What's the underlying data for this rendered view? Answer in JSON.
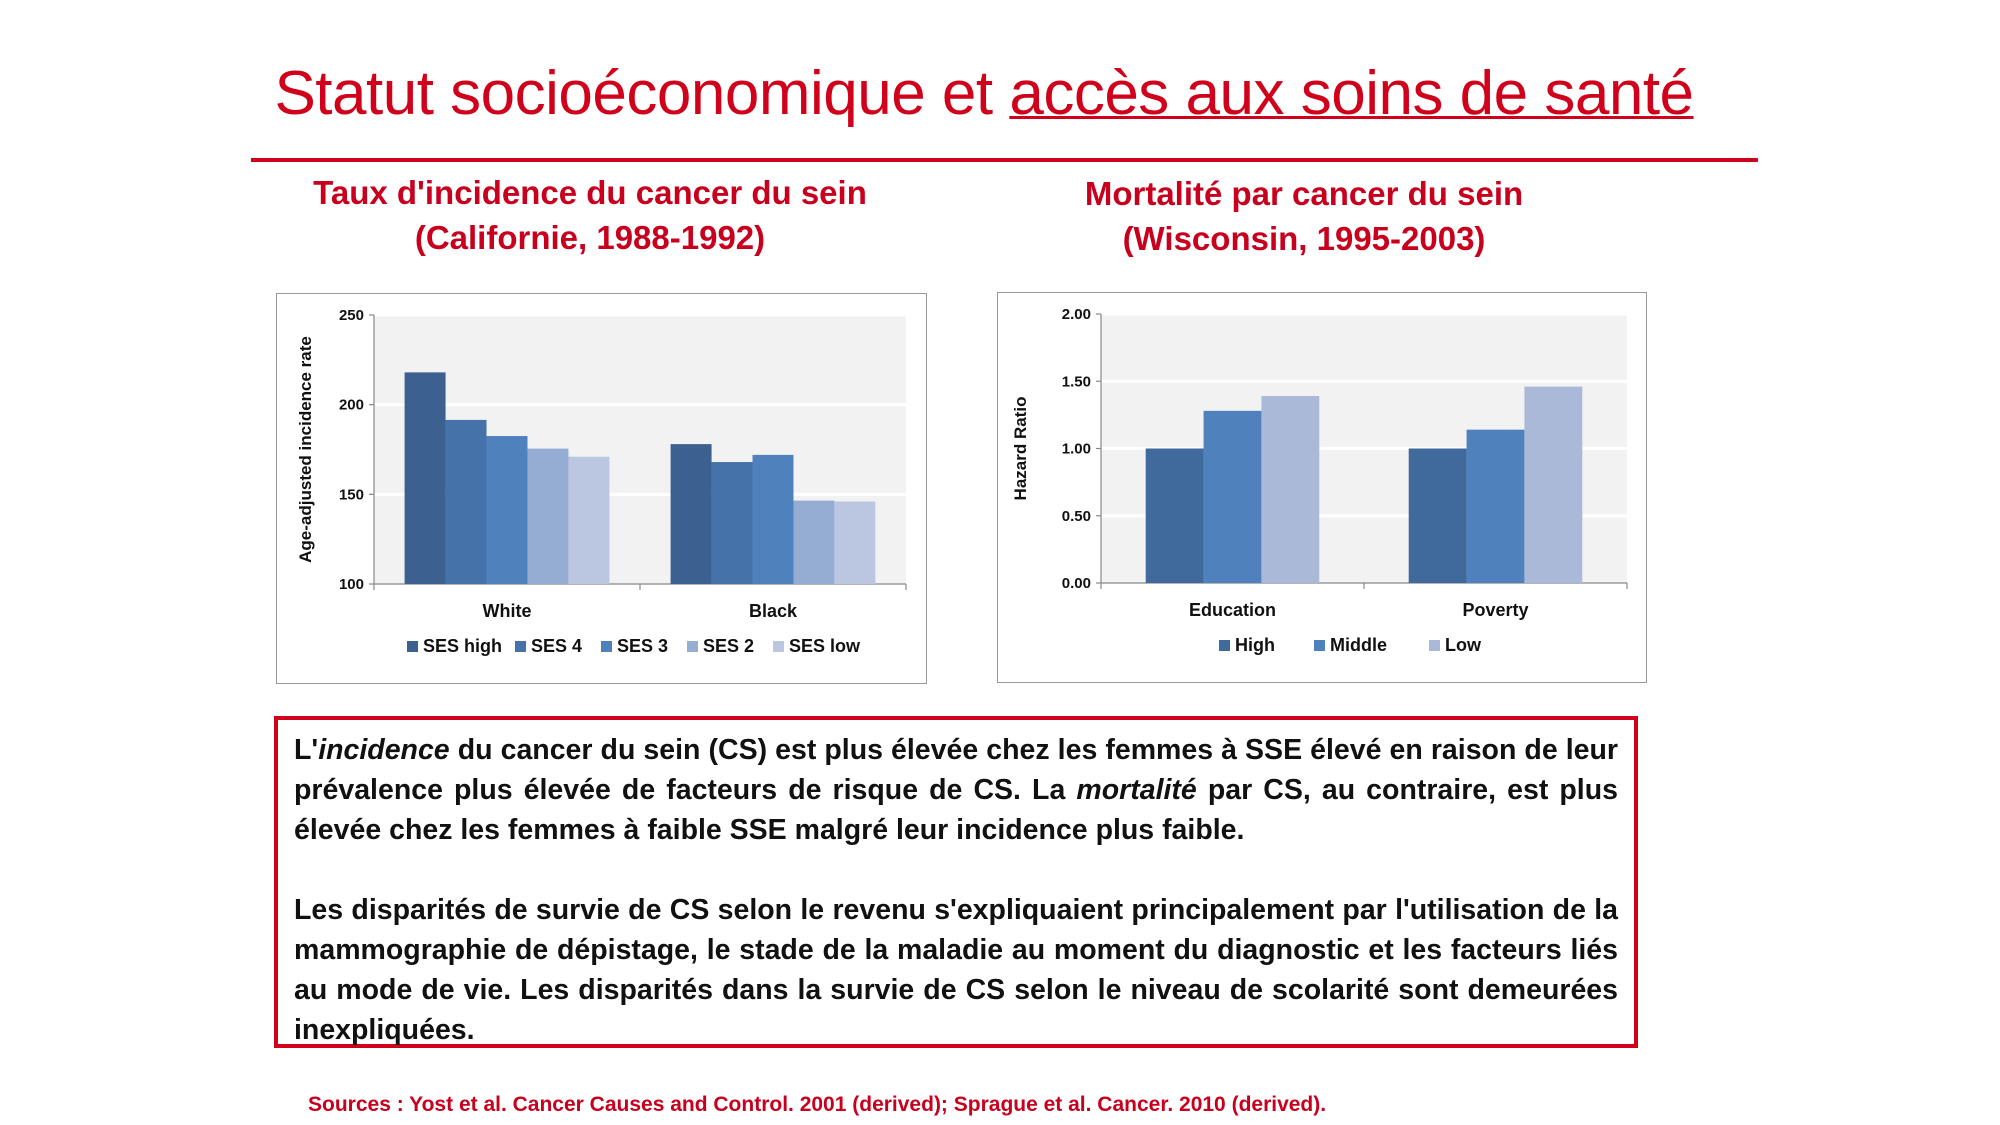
{
  "title": {
    "plain": "Statut socioéconomique et ",
    "underlined": "accès aux soins de santé"
  },
  "subtitles": {
    "left": [
      "Taux d'incidence du cancer du sein",
      "(Californie, 1988-1992)"
    ],
    "right": [
      "Mortalité par cancer du sein",
      "(Wisconsin, 1995-2003)"
    ]
  },
  "chart_data": [
    {
      "type": "bar",
      "title": "Taux d'incidence du cancer du sein (Californie, 1988-1992)",
      "xlabel": "",
      "ylabel": "Age-adjusted incidence rate",
      "ylim": [
        100,
        250
      ],
      "yticks": [
        "100",
        "150",
        "200",
        "250"
      ],
      "grid": true,
      "legend": "bottom",
      "categories": [
        "White",
        "Black"
      ],
      "series": [
        {
          "name": "SES high",
          "color": "#3C6090",
          "values": [
            218,
            178
          ]
        },
        {
          "name": "SES 4",
          "color": "#4572A8",
          "values": [
            191.5,
            168
          ]
        },
        {
          "name": "SES 3",
          "color": "#4F81BD",
          "values": [
            182.5,
            172
          ]
        },
        {
          "name": "SES 2",
          "color": "#95ADD3",
          "values": [
            175.5,
            146.5
          ]
        },
        {
          "name": "SES low",
          "color": "#BBC7E0",
          "values": [
            171,
            146
          ]
        }
      ]
    },
    {
      "type": "bar",
      "title": "Mortalité par cancer du sein (Wisconsin, 1995-2003)",
      "xlabel": "",
      "ylabel": "Hazard Ratio",
      "ylim": [
        0,
        2
      ],
      "yticks": [
        "0.00",
        "0.50",
        "1.00",
        "1.50",
        "2.00"
      ],
      "grid": true,
      "legend": "bottom",
      "categories": [
        "Education",
        "Poverty"
      ],
      "series": [
        {
          "name": "High",
          "color": "#406A9C",
          "values": [
            1.0,
            1.0
          ]
        },
        {
          "name": "Middle",
          "color": "#4F81BD",
          "values": [
            1.28,
            1.14
          ]
        },
        {
          "name": "Low",
          "color": "#A9B9D7",
          "values": [
            1.39,
            1.46
          ]
        }
      ]
    }
  ],
  "body": {
    "p1": {
      "a": "L'",
      "b": "incidence",
      "c": " du cancer du sein (CS) est plus élevée chez les femmes à SSE élevé en raison de leur prévalence plus élevée de facteurs de risque de CS. La ",
      "d": "mortalité",
      "e": " par CS, au contraire, est plus élevée chez les femmes à faible SSE malgré leur incidence plus faible."
    },
    "p2": "Les disparités de survie de CS selon le revenu s'expliquaient principalement par l'utilisation de la mammographie de dépistage, le stade de la maladie au moment du diagnostic et les facteurs liés au mode de vie. Les disparités dans la survie de CS selon le niveau de scolarité sont demeurées inexpliquées."
  },
  "sources": "Sources : Yost et al. Cancer Causes and Control. 2001 (derived); Sprague et al. Cancer. 2010 (derived)."
}
